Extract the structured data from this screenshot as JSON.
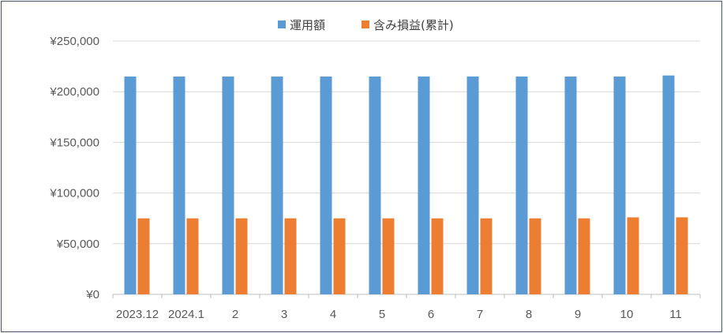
{
  "chart_data": {
    "type": "bar",
    "categories": [
      "2023.12",
      "2024.1",
      "2",
      "3",
      "4",
      "5",
      "6",
      "7",
      "8",
      "9",
      "10",
      "11"
    ],
    "series": [
      {
        "name": "運用額",
        "color": "#5b9bd5",
        "values": [
          215000,
          215000,
          215000,
          215000,
          215000,
          215000,
          215000,
          215000,
          215000,
          215000,
          215000,
          216000
        ]
      },
      {
        "name": "含み損益(累計)",
        "color": "#ed7d31",
        "values": [
          75000,
          75000,
          75000,
          75000,
          75000,
          75000,
          75000,
          75000,
          75000,
          75000,
          76000,
          76000
        ]
      }
    ],
    "yticks": [
      "¥0",
      "¥50,000",
      "¥100,000",
      "¥150,000",
      "¥200,000",
      "¥250,000"
    ],
    "ylim": [
      0,
      250000
    ],
    "legend_position": "top",
    "grid": true,
    "title": "",
    "xlabel": "",
    "ylabel": ""
  }
}
